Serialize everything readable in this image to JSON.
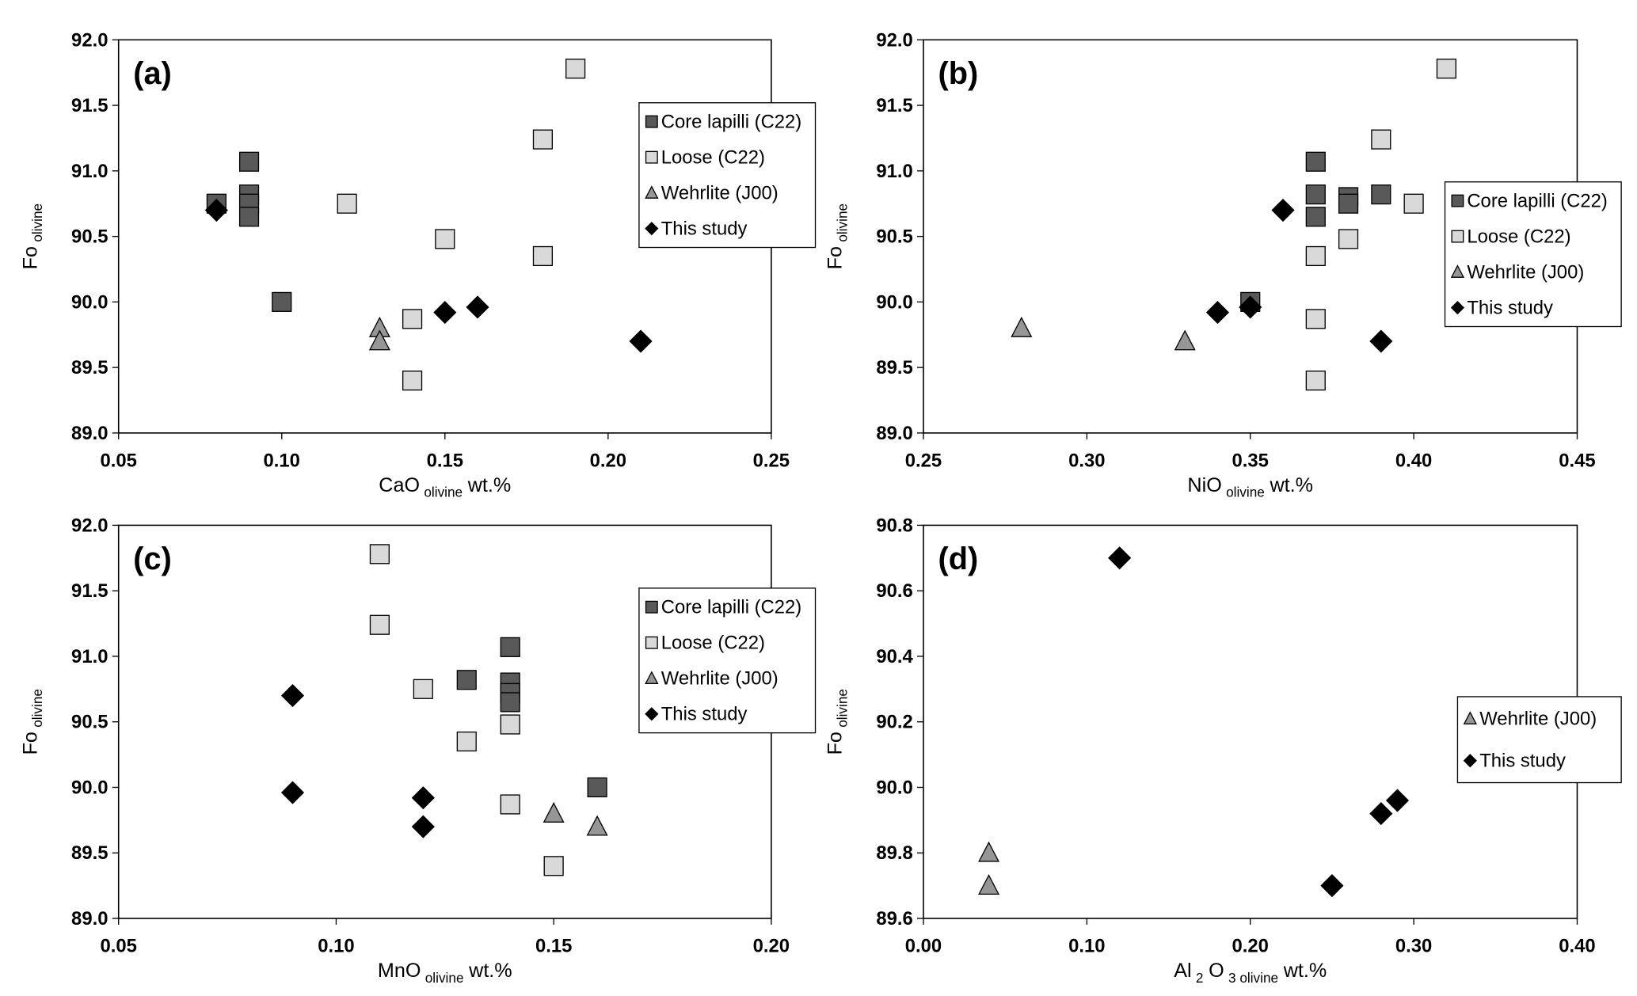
{
  "chart_data": [
    {
      "type": "scatter",
      "panel_label": "(a)",
      "xlabel": [
        {
          "text": "CaO"
        },
        {
          "text": "olivine",
          "sub": true
        },
        {
          "text": "wt.%"
        }
      ],
      "ylabel": [
        {
          "text": "Fo"
        },
        {
          "text": "olivine",
          "sub": true
        }
      ],
      "xlim": [
        0.05,
        0.25
      ],
      "xticks": [
        0.05,
        {
          "value": 0.1,
          "label": "0.10"
        },
        0.15,
        {
          "value": 0.2,
          "label": "0.20"
        },
        0.25
      ],
      "ylim": [
        89,
        92
      ],
      "yticks": [
        {
          "value": 89,
          "label": "89.0"
        },
        89.5,
        {
          "value": 90,
          "label": "90.0"
        },
        90.5,
        {
          "value": 91,
          "label": "91.0"
        },
        91.5,
        {
          "value": 92,
          "label": "92.0"
        }
      ],
      "legend": "upper right",
      "series": [
        {
          "name": "Core lapilli (C22)",
          "color": "#595959",
          "marker": "square",
          "x": [
            0.08,
            0.09,
            0.09,
            0.09,
            0.09,
            0.1
          ],
          "values": [
            90.75,
            91.07,
            90.82,
            90.75,
            90.65,
            90.0
          ]
        },
        {
          "name": "Loose (C22)",
          "color": "#d9d9d9",
          "marker": "square",
          "x": [
            0.19,
            0.18,
            0.12,
            0.15,
            0.18,
            0.14,
            0.14
          ],
          "values": [
            91.78,
            91.24,
            90.75,
            90.48,
            90.35,
            89.87,
            89.4
          ]
        },
        {
          "name": "Wehrlite (J00)",
          "color": "#969696",
          "marker": "triangle",
          "x": [
            0.13,
            0.13
          ],
          "values": [
            89.8,
            89.7
          ]
        },
        {
          "name": "This study",
          "color": "#000000",
          "marker": "diamond",
          "x": [
            0.08,
            0.15,
            0.16,
            0.21
          ],
          "values": [
            90.7,
            89.92,
            89.96,
            89.7
          ]
        }
      ]
    },
    {
      "type": "scatter",
      "panel_label": "(b)",
      "xlabel": [
        {
          "text": "NiO"
        },
        {
          "text": "olivine",
          "sub": true
        },
        {
          "text": "wt.%"
        }
      ],
      "ylabel": [
        {
          "text": "Fo"
        },
        {
          "text": "olivine",
          "sub": true
        }
      ],
      "xlim": [
        0.25,
        0.45
      ],
      "xticks": [
        0.25,
        {
          "value": 0.3,
          "label": "0.30"
        },
        0.35,
        {
          "value": 0.4,
          "label": "0.40"
        },
        0.45
      ],
      "ylim": [
        89,
        92
      ],
      "yticks": [
        {
          "value": 89,
          "label": "89.0"
        },
        89.5,
        {
          "value": 90,
          "label": "90.0"
        },
        90.5,
        {
          "value": 91,
          "label": "91.0"
        },
        91.5,
        {
          "value": 92,
          "label": "92.0"
        }
      ],
      "legend": "center right",
      "series": [
        {
          "name": "Core lapilli (C22)",
          "color": "#595959",
          "marker": "square",
          "x": [
            0.37,
            0.37,
            0.37,
            0.38,
            0.38,
            0.39,
            0.35
          ],
          "values": [
            91.07,
            90.82,
            90.65,
            90.8,
            90.75,
            90.82,
            90.0
          ]
        },
        {
          "name": "Loose (C22)",
          "color": "#d9d9d9",
          "marker": "square",
          "x": [
            0.41,
            0.39,
            0.4,
            0.38,
            0.37,
            0.37,
            0.37
          ],
          "values": [
            91.78,
            91.24,
            90.75,
            90.48,
            90.35,
            89.87,
            89.4
          ]
        },
        {
          "name": "Wehrlite (J00)",
          "color": "#969696",
          "marker": "triangle",
          "x": [
            0.28,
            0.33
          ],
          "values": [
            89.8,
            89.7
          ]
        },
        {
          "name": "This study",
          "color": "#000000",
          "marker": "diamond",
          "x": [
            0.36,
            0.34,
            0.35,
            0.39
          ],
          "values": [
            90.7,
            89.92,
            89.96,
            89.7
          ]
        }
      ]
    },
    {
      "type": "scatter",
      "panel_label": "(c)",
      "xlabel": [
        {
          "text": "MnO"
        },
        {
          "text": "olivine",
          "sub": true
        },
        {
          "text": "wt.%"
        }
      ],
      "ylabel": [
        {
          "text": "Fo"
        },
        {
          "text": "olivine",
          "sub": true
        }
      ],
      "xlim": [
        0.05,
        0.2
      ],
      "xticks": [
        0.05,
        {
          "value": 0.1,
          "label": "0.10"
        },
        0.15,
        {
          "value": 0.2,
          "label": "0.20"
        }
      ],
      "ylim": [
        89,
        92
      ],
      "yticks": [
        {
          "value": 89,
          "label": "89.0"
        },
        89.5,
        {
          "value": 90,
          "label": "90.0"
        },
        90.5,
        {
          "value": 91,
          "label": "91.0"
        },
        91.5,
        {
          "value": 92,
          "label": "92.0"
        }
      ],
      "legend": "upper right",
      "series": [
        {
          "name": "Core lapilli (C22)",
          "color": "#595959",
          "marker": "square",
          "x": [
            0.14,
            0.13,
            0.14,
            0.14,
            0.14,
            0.16
          ],
          "values": [
            91.07,
            90.82,
            90.8,
            90.72,
            90.65,
            90.0
          ]
        },
        {
          "name": "Loose (C22)",
          "color": "#d9d9d9",
          "marker": "square",
          "x": [
            0.11,
            0.11,
            0.12,
            0.14,
            0.13,
            0.14,
            0.15
          ],
          "values": [
            91.78,
            91.24,
            90.75,
            90.48,
            90.35,
            89.87,
            89.4
          ]
        },
        {
          "name": "Wehrlite (J00)",
          "color": "#969696",
          "marker": "triangle",
          "x": [
            0.15,
            0.16
          ],
          "values": [
            89.8,
            89.7
          ]
        },
        {
          "name": "This study",
          "color": "#000000",
          "marker": "diamond",
          "x": [
            0.09,
            0.09,
            0.12,
            0.12
          ],
          "values": [
            90.7,
            89.96,
            89.92,
            89.7
          ]
        }
      ]
    },
    {
      "type": "scatter",
      "panel_label": "(d)",
      "xlabel": [
        {
          "text": "Al"
        },
        {
          "text": "2",
          "sub": true
        },
        {
          "text": "O"
        },
        {
          "text": "3 olivine",
          "sub": true
        },
        {
          "text": "wt.%"
        }
      ],
      "ylabel": [
        {
          "text": "Fo"
        },
        {
          "text": "olivine",
          "sub": true
        }
      ],
      "xlim": [
        0,
        0.4
      ],
      "xticks": [
        {
          "value": 0,
          "label": "0.00"
        },
        {
          "value": 0.1,
          "label": "0.10"
        },
        {
          "value": 0.2,
          "label": "0.20"
        },
        {
          "value": 0.3,
          "label": "0.30"
        },
        {
          "value": 0.4,
          "label": "0.40"
        }
      ],
      "ylim": [
        89.6,
        90.8
      ],
      "yticks": [
        89.6,
        89.8,
        {
          "value": 90,
          "label": "90.0"
        },
        90.2,
        90.4,
        90.6,
        90.8
      ],
      "legend": "center right",
      "series": [
        {
          "name": "Wehrlite (J00)",
          "color": "#969696",
          "marker": "triangle",
          "x": [
            0.04,
            0.04
          ],
          "values": [
            89.8,
            89.7
          ]
        },
        {
          "name": "This study",
          "color": "#000000",
          "marker": "diamond",
          "x": [
            0.12,
            0.28,
            0.29,
            0.25
          ],
          "values": [
            90.7,
            89.92,
            89.96,
            89.7
          ]
        }
      ]
    }
  ]
}
